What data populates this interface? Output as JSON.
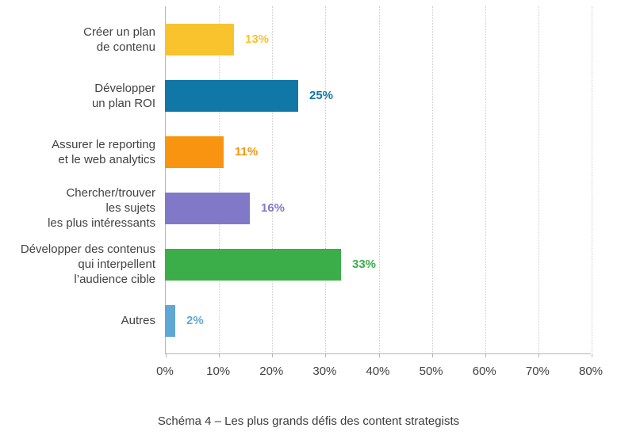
{
  "chart_data": {
    "type": "bar",
    "orientation": "horizontal",
    "title": "",
    "caption": "Schéma 4 – Les plus grands défis des content strategists",
    "xlabel": "",
    "ylabel": "",
    "xlim": [
      0,
      80
    ],
    "x_ticks": [
      "0%",
      "10%",
      "20%",
      "30%",
      "40%",
      "50%",
      "60%",
      "70%",
      "80%"
    ],
    "grid": "vertical-dotted",
    "legend": "none",
    "value_suffix": "%",
    "categories": [
      "Créer un plan de contenu",
      "Développer un plan ROI",
      "Assurer le reporting et le web analytics",
      "Chercher/trouver les sujets les plus intéressants",
      "Développer des contenus qui interpellent l’audience cible",
      "Autres"
    ],
    "values": [
      13,
      25,
      11,
      16,
      33,
      2
    ],
    "bars": [
      {
        "label": "Créer un plan\nde contenu",
        "value": 13,
        "value_label": "13%",
        "color": "#F9C32E"
      },
      {
        "label": "Développer\nun plan ROI",
        "value": 25,
        "value_label": "25%",
        "color": "#1177A7"
      },
      {
        "label": "Assurer le reporting\net le web analytics",
        "value": 11,
        "value_label": "11%",
        "color": "#F8940F"
      },
      {
        "label": "Chercher/trouver\nles sujets\nles plus intéressants",
        "value": 16,
        "value_label": "16%",
        "color": "#8278C8"
      },
      {
        "label": "Développer des contenus\nqui interpellent\nl’audience cible",
        "value": 33,
        "value_label": "33%",
        "color": "#3BAE49"
      },
      {
        "label": "Autres",
        "value": 2,
        "value_label": "2%",
        "color": "#5FA8D6"
      }
    ]
  },
  "colors": {
    "axis": "#B5B5B5",
    "gridline": "#CDCDCD",
    "category_text": "#424242",
    "tick_text": "#424242",
    "caption_text": "#3C3C3C",
    "background": "#FFFFFF"
  }
}
